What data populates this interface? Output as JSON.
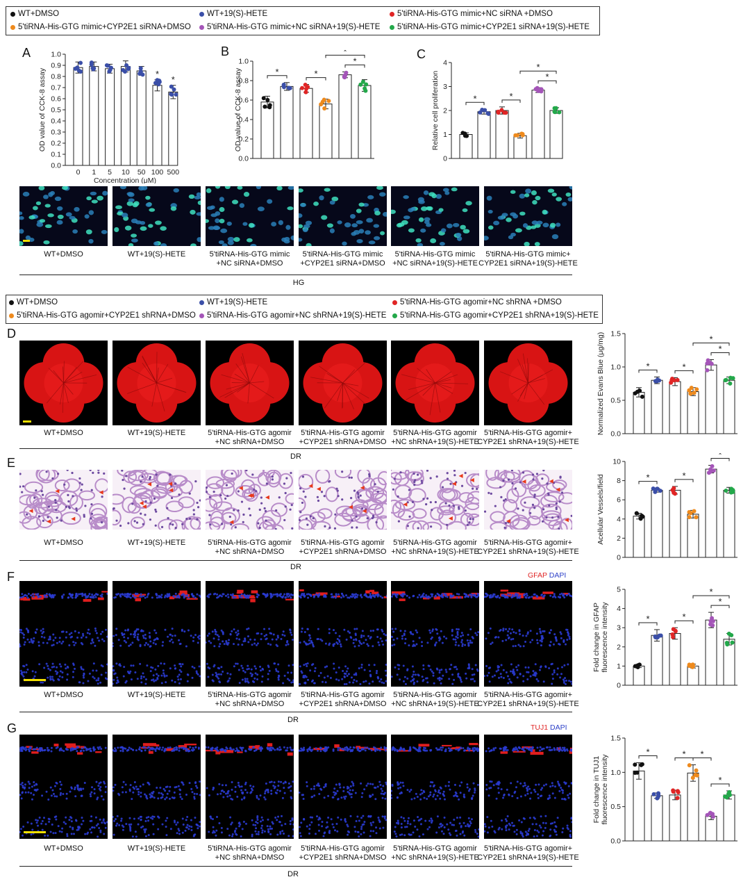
{
  "colors": {
    "black": "#111111",
    "blue": "#3b4fa8",
    "red": "#e02525",
    "orange": "#ee8a1d",
    "purple": "#a455b8",
    "green": "#23a84a"
  },
  "legend_top": [
    {
      "label": "WT+DMSO",
      "color": "#111111"
    },
    {
      "label": "WT+19(S)-HETE",
      "color": "#3b4fa8"
    },
    {
      "label": "5'tiRNA-His-GTG mimic+NC siRNA +DMSO",
      "color": "#e02525"
    },
    {
      "label": "5'tiRNA-His-GTG mimic+CYP2E1 siRNA+DMSO",
      "color": "#ee8a1d"
    },
    {
      "label": "5'tiRNA-His-GTG mimic+NC siRNA+19(S)-HETE",
      "color": "#a455b8"
    },
    {
      "label": "5'tiRNA-His-GTG mimic+CYP2E1 siRNA+19(S)-HETE",
      "color": "#23a84a"
    }
  ],
  "legend_bottom": [
    {
      "label": "WT+DMSO",
      "color": "#111111"
    },
    {
      "label": "WT+19(S)-HETE",
      "color": "#3b4fa8"
    },
    {
      "label": "5'tiRNA-His-GTG agomir+NC shRNA +DMSO",
      "color": "#e02525"
    },
    {
      "label": "5'tiRNA-His-GTG agomir+CYP2E1 shRNA+DMSO",
      "color": "#ee8a1d"
    },
    {
      "label": "5'tiRNA-His-GTG agomir+NC shRNA+19(S)-HETE",
      "color": "#a455b8"
    },
    {
      "label": "5'tiRNA-His-GTG agomir+CYP2E1 shRNA+19(S)-HETE",
      "color": "#23a84a"
    }
  ],
  "panels": {
    "A": "A",
    "B": "B",
    "C": "C",
    "D": "D",
    "E": "E",
    "F": "F",
    "G": "G"
  },
  "captions_hg": [
    [
      "WT+DMSO",
      ""
    ],
    [
      "WT+19(S)-HETE",
      ""
    ],
    [
      "5'tiRNA-His-GTG mimic",
      "+NC siRNA+DMSO"
    ],
    [
      "5'tiRNA-His-GTG mimic",
      "+CYP2E1 siRNA+DMSO"
    ],
    [
      "5'tiRNA-His-GTG mimic",
      "+NC siRNA+19(S)-HETE"
    ],
    [
      "5'tiRNA-His-GTG mimic+",
      "CYP2E1 siRNA+19(S)-HETE"
    ]
  ],
  "captions_dr": [
    [
      "WT+DMSO",
      ""
    ],
    [
      "WT+19(S)-HETE",
      ""
    ],
    [
      "5'tiRNA-His-GTG agomir",
      "+NC shRNA+DMSO"
    ],
    [
      "5'tiRNA-His-GTG agomir",
      "+CYP2E1 shRNA+DMSO"
    ],
    [
      "5'tiRNA-His-GTG agomir",
      "+NC shRNA+19(S)-HETE"
    ],
    [
      "5'tiRNA-His-GTG agomir+",
      "CYP2E1 shRNA+19(S)-HETE"
    ]
  ],
  "group_labels": {
    "hg": "HG",
    "dr": "DR"
  },
  "stains": {
    "F": {
      "marker": "GFAP",
      "counter": "DAPI"
    },
    "G": {
      "marker": "TUJ1",
      "counter": "DAPI"
    }
  },
  "chart_data": [
    {
      "id": "A",
      "type": "bar",
      "categories": [
        "0",
        "1",
        "5",
        "10",
        "50",
        "100",
        "500"
      ],
      "values": [
        0.88,
        0.89,
        0.87,
        0.89,
        0.85,
        0.72,
        0.66
      ],
      "errors": [
        0.05,
        0.04,
        0.04,
        0.05,
        0.04,
        0.05,
        0.06
      ],
      "point_color": "#3b4fa8",
      "ylabel": "OD value of CCK-8 assay",
      "xlabel": "Concentration (μM)",
      "ylim": [
        0,
        1.0
      ],
      "yticks": [
        0.0,
        0.1,
        0.2,
        0.3,
        0.4,
        0.5,
        0.6,
        0.7,
        0.8,
        0.9,
        1.0
      ],
      "significance_single": [
        5,
        6
      ]
    },
    {
      "id": "B",
      "type": "bar",
      "categories": [
        "1",
        "2",
        "3",
        "4",
        "5",
        "6"
      ],
      "values": [
        0.58,
        0.74,
        0.72,
        0.56,
        0.86,
        0.75
      ],
      "errors": [
        0.06,
        0.04,
        0.04,
        0.05,
        0.03,
        0.06
      ],
      "ylabel": "OD value of CCK-8 assay",
      "ylim": [
        0,
        1.0
      ],
      "yticks": [
        0.0,
        0.2,
        0.4,
        0.6,
        0.8,
        1.0
      ],
      "significance": [
        [
          0,
          1
        ],
        [
          2,
          3
        ],
        [
          4,
          5
        ],
        [
          3,
          5
        ]
      ]
    },
    {
      "id": "C",
      "type": "bar",
      "categories": [
        "1",
        "2",
        "3",
        "4",
        "5",
        "6"
      ],
      "values": [
        1.0,
        1.95,
        2.0,
        0.95,
        2.85,
        2.0
      ],
      "errors": [
        0.07,
        0.1,
        0.15,
        0.1,
        0.1,
        0.12
      ],
      "ylabel": "Relative cell proliferation",
      "ylim": [
        0,
        4
      ],
      "yticks": [
        0,
        1,
        2,
        3,
        4
      ],
      "significance": [
        [
          0,
          1
        ],
        [
          2,
          3
        ],
        [
          4,
          5
        ],
        [
          3,
          5
        ]
      ]
    },
    {
      "id": "D",
      "type": "bar",
      "categories": [
        "1",
        "2",
        "3",
        "4",
        "5",
        "6"
      ],
      "values": [
        0.62,
        0.8,
        0.78,
        0.63,
        1.03,
        0.8
      ],
      "errors": [
        0.07,
        0.05,
        0.06,
        0.06,
        0.08,
        0.05
      ],
      "ylabel": "Normalized Evans Blue (μg/mg)",
      "ylim": [
        0,
        1.5
      ],
      "yticks": [
        0.0,
        0.5,
        1.0,
        1.5
      ],
      "significance": [
        [
          0,
          1
        ],
        [
          2,
          3
        ],
        [
          4,
          5
        ],
        [
          3,
          5
        ]
      ]
    },
    {
      "id": "E",
      "type": "bar",
      "categories": [
        "1",
        "2",
        "3",
        "4",
        "5",
        "6"
      ],
      "values": [
        4.3,
        7.0,
        7.0,
        4.5,
        9.2,
        7.0
      ],
      "errors": [
        0.3,
        0.2,
        0.4,
        0.4,
        0.4,
        0.3
      ],
      "ylabel": "Acellular Vessels/field",
      "ylim": [
        0,
        10
      ],
      "yticks": [
        0,
        2,
        4,
        6,
        8,
        10
      ],
      "significance": [
        [
          0,
          1
        ],
        [
          2,
          3
        ],
        [
          4,
          5
        ],
        [
          3,
          5
        ]
      ]
    },
    {
      "id": "F",
      "type": "bar",
      "categories": [
        "1",
        "2",
        "3",
        "4",
        "5",
        "6"
      ],
      "values": [
        1.0,
        2.6,
        2.7,
        1.0,
        3.4,
        2.4
      ],
      "errors": [
        0.08,
        0.3,
        0.3,
        0.1,
        0.4,
        0.3
      ],
      "ylabel": "Fold change in GFAP fluorescence intensity",
      "ylim": [
        0,
        5
      ],
      "yticks": [
        0,
        1,
        2,
        3,
        4,
        5
      ],
      "significance": [
        [
          0,
          1
        ],
        [
          2,
          3
        ],
        [
          4,
          5
        ],
        [
          3,
          5
        ]
      ]
    },
    {
      "id": "G",
      "type": "bar",
      "categories": [
        "1",
        "2",
        "3",
        "4",
        "5",
        "6"
      ],
      "values": [
        1.02,
        0.66,
        0.67,
        0.99,
        0.36,
        0.67
      ],
      "errors": [
        0.12,
        0.04,
        0.07,
        0.12,
        0.05,
        0.06
      ],
      "ylabel": "Fold change in TUJ1 fluorescence intensity",
      "ylim": [
        0,
        1.5
      ],
      "yticks": [
        0.0,
        0.5,
        1.0,
        1.5
      ],
      "significance": [
        [
          0,
          1
        ],
        [
          2,
          3
        ],
        [
          4,
          5
        ],
        [
          3,
          4
        ]
      ]
    }
  ]
}
